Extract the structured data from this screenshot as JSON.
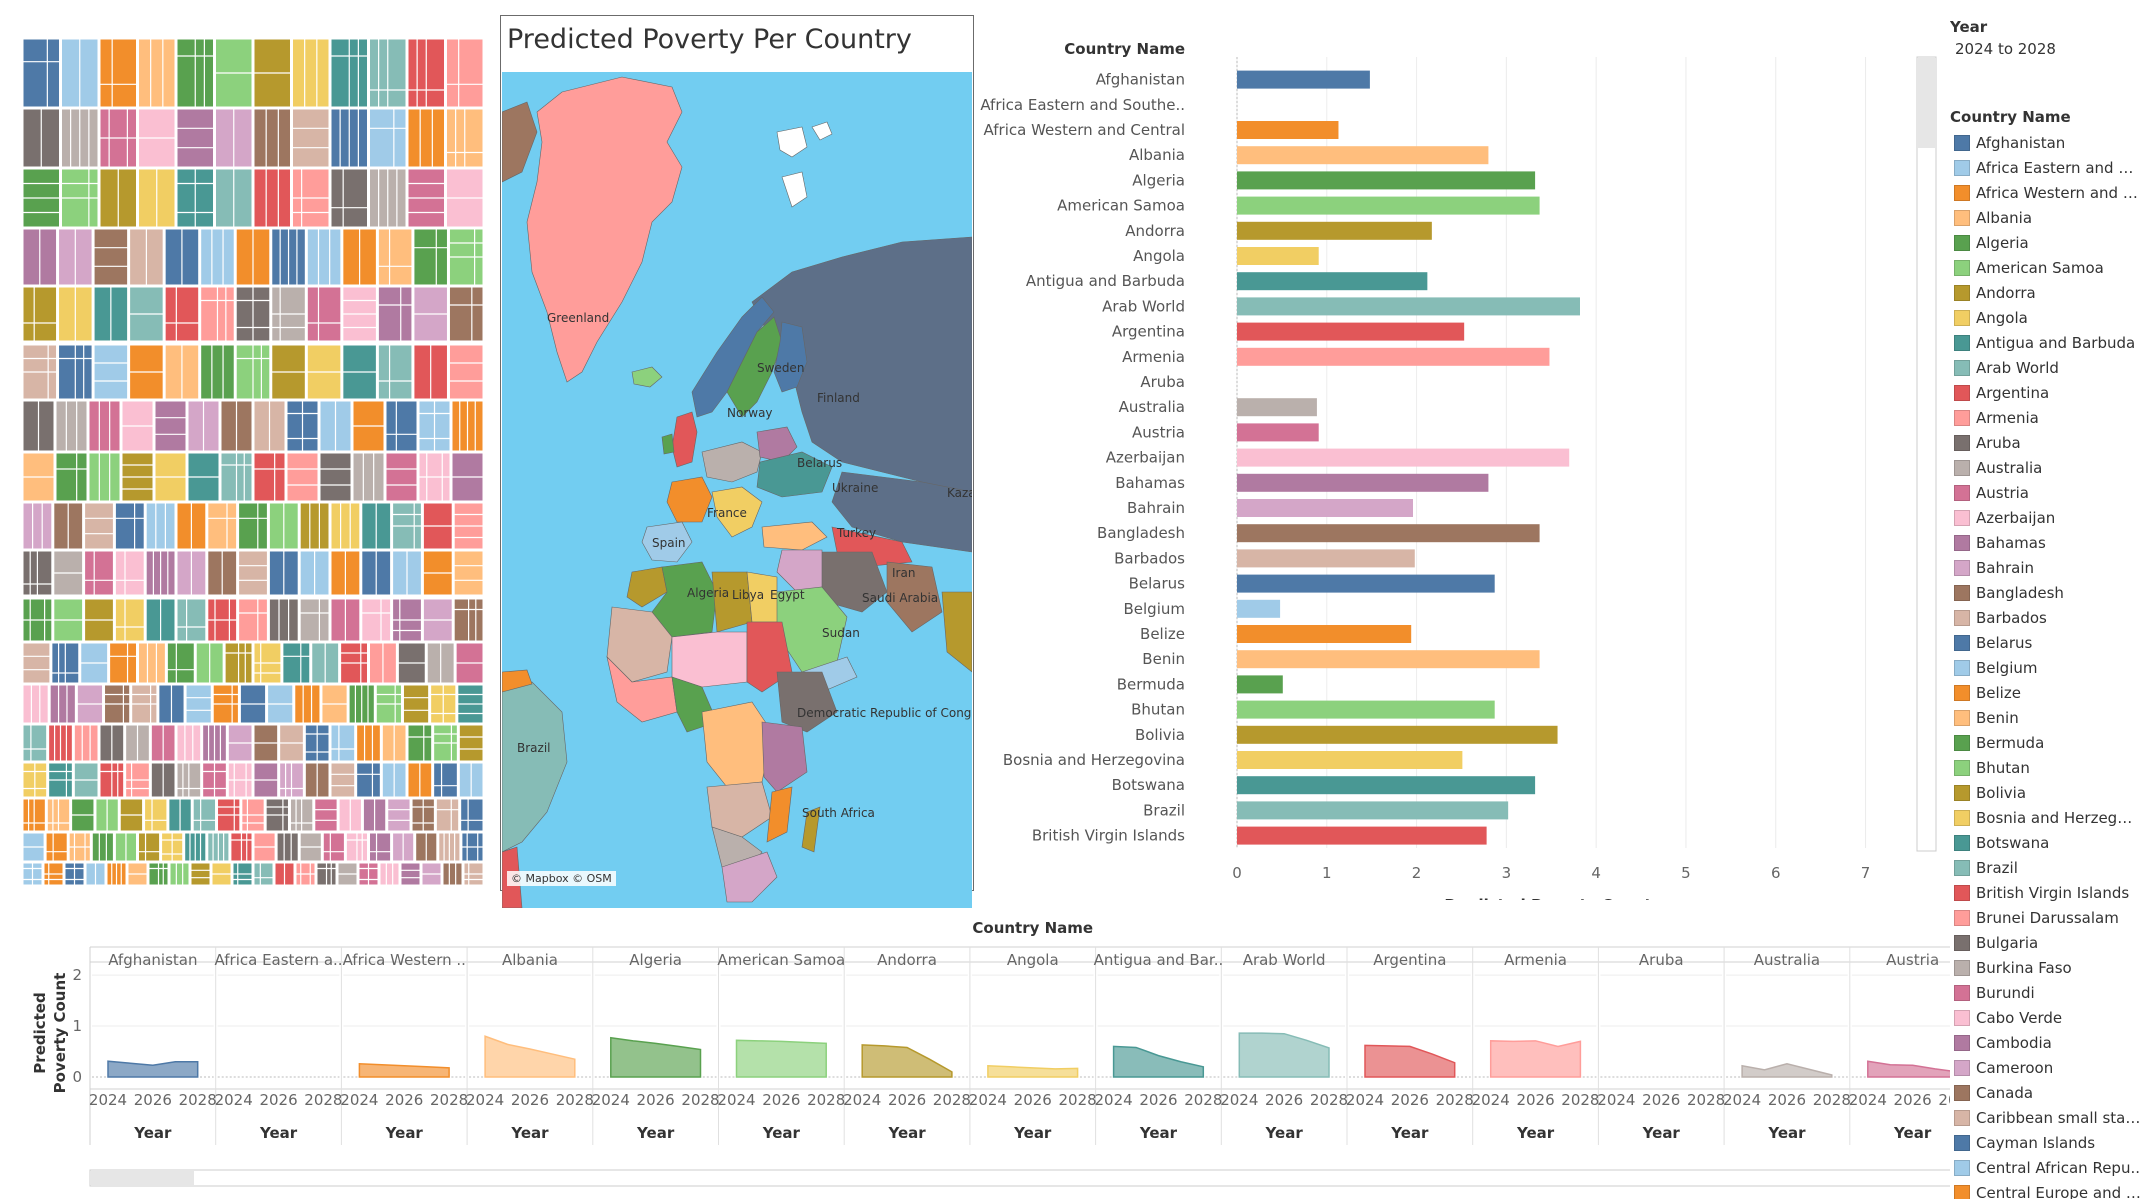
{
  "map": {
    "title": "Predicted Poverty Per Country",
    "attribution": "© Mapbox © OSM",
    "labels": [
      "Greenland",
      "Sweden",
      "Finland",
      "Norway",
      "Belarus",
      "Ukraine",
      "Kazak",
      "France",
      "Spain",
      "Turkey",
      "Iran",
      "Algeria",
      "Libya",
      "Egypt",
      "Saudi Arabia",
      "Sudan",
      "Democratic Republic of Congo",
      "Brazil",
      "South Africa"
    ]
  },
  "legend": {
    "year_title": "Year",
    "year_value": "2024 to 2028",
    "country_title": "Country Name"
  },
  "chart_data": [
    {
      "type": "bar",
      "orientation": "horizontal",
      "row_header": "Country Name",
      "xlabel": "Predicted Poverty Count",
      "xlim": [
        0,
        9.5
      ],
      "xticks": [
        0,
        1,
        2,
        3,
        4,
        5,
        6,
        7,
        8,
        9
      ],
      "categories": [
        "Afghanistan",
        "Africa Eastern and Southe..",
        "Africa Western and Central",
        "Albania",
        "Algeria",
        "American Samoa",
        "Andorra",
        "Angola",
        "Antigua and Barbuda",
        "Arab World",
        "Argentina",
        "Armenia",
        "Aruba",
        "Australia",
        "Austria",
        "Azerbaijan",
        "Bahamas",
        "Bahrain",
        "Bangladesh",
        "Barbados",
        "Belarus",
        "Belgium",
        "Belize",
        "Benin",
        "Bermuda",
        "Bhutan",
        "Bolivia",
        "Bosnia and Herzegovina",
        "Botswana",
        "Brazil",
        "British Virgin Islands"
      ],
      "values": [
        1.48,
        0,
        1.13,
        2.8,
        3.32,
        3.37,
        2.17,
        0.91,
        2.12,
        3.82,
        2.53,
        3.48,
        0,
        0.89,
        0.91,
        3.7,
        2.8,
        1.96,
        3.37,
        1.98,
        2.87,
        0.48,
        1.94,
        3.37,
        0.51,
        2.87,
        3.57,
        2.51,
        3.32,
        3.02,
        2.78
      ],
      "colors": [
        "#4e79a7",
        "#a0cbe8",
        "#f28e2b",
        "#ffbe7d",
        "#59a14f",
        "#8cd17d",
        "#b6992d",
        "#f1ce63",
        "#499894",
        "#86bcb6",
        "#e15759",
        "#ff9d9a",
        "#79706e",
        "#bab0ac",
        "#d37295",
        "#fabfd2",
        "#b07aa1",
        "#d4a6c8",
        "#9d7660",
        "#d7b5a6",
        "#4e79a7",
        "#a0cbe8",
        "#f28e2b",
        "#ffbe7d",
        "#59a14f",
        "#8cd17d",
        "#b6992d",
        "#f1ce63",
        "#499894",
        "#86bcb6",
        "#e15759"
      ]
    },
    {
      "type": "area",
      "facet_header": "Country Name",
      "xlabel": "Year",
      "ylabel": "Predicted Poverty Count",
      "x": [
        2024,
        2025,
        2026,
        2027,
        2028
      ],
      "ylim": [
        0,
        2.1
      ],
      "yticks": [
        0,
        1,
        2
      ],
      "xticks": [
        2024,
        2026,
        2028
      ],
      "facet_labels": [
        "Afghanistan",
        "Africa Eastern a..",
        "Africa Western ..",
        "Albania",
        "Algeria",
        "American Samoa",
        "Andorra",
        "Angola",
        "Antigua and Bar..",
        "Arab World",
        "Argentina",
        "Armenia",
        "Aruba",
        "Australia",
        "Austria"
      ],
      "series": [
        {
          "values": [
            0.31,
            0.27,
            0.23,
            0.3,
            0.3
          ],
          "color": "#4e79a7"
        },
        {
          "values": [
            0,
            0,
            0,
            0,
            0
          ],
          "color": "#a0cbe8"
        },
        {
          "values": [
            0.26,
            0.24,
            0.22,
            0.2,
            0.18
          ],
          "color": "#f28e2b"
        },
        {
          "values": [
            0.8,
            0.64,
            0.55,
            0.45,
            0.35
          ],
          "color": "#ffbe7d"
        },
        {
          "values": [
            0.77,
            0.71,
            0.66,
            0.6,
            0.54
          ],
          "color": "#59a14f"
        },
        {
          "values": [
            0.72,
            0.71,
            0.7,
            0.68,
            0.66
          ],
          "color": "#8cd17d"
        },
        {
          "values": [
            0.63,
            0.61,
            0.58,
            0.35,
            0.1
          ],
          "color": "#b6992d"
        },
        {
          "values": [
            0.22,
            0.2,
            0.18,
            0.16,
            0.17
          ],
          "color": "#f1ce63"
        },
        {
          "values": [
            0.6,
            0.58,
            0.42,
            0.3,
            0.2
          ],
          "color": "#499894"
        },
        {
          "values": [
            0.86,
            0.86,
            0.85,
            0.72,
            0.57
          ],
          "color": "#86bcb6"
        },
        {
          "values": [
            0.62,
            0.61,
            0.6,
            0.45,
            0.28
          ],
          "color": "#e15759"
        },
        {
          "values": [
            0.71,
            0.7,
            0.71,
            0.6,
            0.7
          ],
          "color": "#ff9d9a"
        },
        {
          "values": [
            0,
            0,
            0,
            0,
            0
          ],
          "color": "#79706e"
        },
        {
          "values": [
            0.22,
            0.14,
            0.26,
            0.15,
            0.04
          ],
          "color": "#bab0ac"
        },
        {
          "values": [
            0.31,
            0.24,
            0.23,
            0.16,
            0.1
          ],
          "color": "#d37295"
        }
      ]
    }
  ],
  "legend_items": [
    {
      "label": "Afghanistan",
      "color": "#4e79a7"
    },
    {
      "label": "Africa Eastern and So..",
      "color": "#a0cbe8"
    },
    {
      "label": "Africa Western and C..",
      "color": "#f28e2b"
    },
    {
      "label": "Albania",
      "color": "#ffbe7d"
    },
    {
      "label": "Algeria",
      "color": "#59a14f"
    },
    {
      "label": "American Samoa",
      "color": "#8cd17d"
    },
    {
      "label": "Andorra",
      "color": "#b6992d"
    },
    {
      "label": "Angola",
      "color": "#f1ce63"
    },
    {
      "label": "Antigua and Barbuda",
      "color": "#499894"
    },
    {
      "label": "Arab World",
      "color": "#86bcb6"
    },
    {
      "label": "Argentina",
      "color": "#e15759"
    },
    {
      "label": "Armenia",
      "color": "#ff9d9a"
    },
    {
      "label": "Aruba",
      "color": "#79706e"
    },
    {
      "label": "Australia",
      "color": "#bab0ac"
    },
    {
      "label": "Austria",
      "color": "#d37295"
    },
    {
      "label": "Azerbaijan",
      "color": "#fabfd2"
    },
    {
      "label": "Bahamas",
      "color": "#b07aa1"
    },
    {
      "label": "Bahrain",
      "color": "#d4a6c8"
    },
    {
      "label": "Bangladesh",
      "color": "#9d7660"
    },
    {
      "label": "Barbados",
      "color": "#d7b5a6"
    },
    {
      "label": "Belarus",
      "color": "#4e79a7"
    },
    {
      "label": "Belgium",
      "color": "#a0cbe8"
    },
    {
      "label": "Belize",
      "color": "#f28e2b"
    },
    {
      "label": "Benin",
      "color": "#ffbe7d"
    },
    {
      "label": "Bermuda",
      "color": "#59a14f"
    },
    {
      "label": "Bhutan",
      "color": "#8cd17d"
    },
    {
      "label": "Bolivia",
      "color": "#b6992d"
    },
    {
      "label": "Bosnia and Herzegovi..",
      "color": "#f1ce63"
    },
    {
      "label": "Botswana",
      "color": "#499894"
    },
    {
      "label": "Brazil",
      "color": "#86bcb6"
    },
    {
      "label": "British Virgin Islands",
      "color": "#e15759"
    },
    {
      "label": "Brunei Darussalam",
      "color": "#ff9d9a"
    },
    {
      "label": "Bulgaria",
      "color": "#79706e"
    },
    {
      "label": "Burkina Faso",
      "color": "#bab0ac"
    },
    {
      "label": "Burundi",
      "color": "#d37295"
    },
    {
      "label": "Cabo Verde",
      "color": "#fabfd2"
    },
    {
      "label": "Cambodia",
      "color": "#b07aa1"
    },
    {
      "label": "Cameroon",
      "color": "#d4a6c8"
    },
    {
      "label": "Canada",
      "color": "#9d7660"
    },
    {
      "label": "Caribbean small states",
      "color": "#d7b5a6"
    },
    {
      "label": "Cayman Islands",
      "color": "#4e79a7"
    },
    {
      "label": "Central African Repu..",
      "color": "#a0cbe8"
    },
    {
      "label": "Central Europe and t..",
      "color": "#f28e2b"
    }
  ]
}
